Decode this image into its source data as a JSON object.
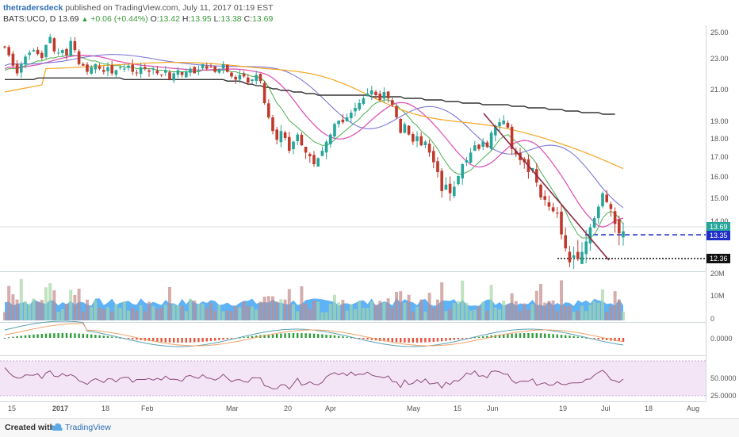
{
  "header": {
    "author": "thetradersdeck",
    "published": "published on TradingView.com, July 11, 2017 01:19 EST",
    "symbol": "BATS:UCO, D",
    "last": "13.69",
    "change_tri": "▲",
    "change": "+0.06 (+0.44%)",
    "o_label": "O:",
    "o_val": "13.42",
    "h_label": "H:",
    "h_val": "13.95",
    "l_label": "L:",
    "l_val": "13.38",
    "c_label": "C:",
    "c_val": "13.69"
  },
  "footer": {
    "created": "Created with",
    "brand": "TradingView"
  },
  "colors": {
    "up": "#26a69a",
    "down": "#c0392b",
    "ema_short": "#4caf50",
    "ema_mid": "#e056b8",
    "ema_mid2": "#7b78d6",
    "ema_long": "#f5a623",
    "sma200": "#333333",
    "trendline": "#8b2942",
    "dash_line": "#1f2ec9",
    "volume": "#42a5f5",
    "rsi_band": "#f3e5f5"
  },
  "price_axis": {
    "ticks": [
      "25.00",
      "23.00",
      "21.00",
      "19.00",
      "18.00",
      "17.00",
      "16.00",
      "15.00",
      "14.00"
    ],
    "last_label": "13.69",
    "level1": "13.35",
    "level2": "12.36"
  },
  "volume_axis": {
    "ticks": [
      "20M",
      "10M",
      "0"
    ]
  },
  "macd_axis": {
    "ticks": [
      "0.0000"
    ]
  },
  "rsi_axis": {
    "ticks": [
      "50.0000",
      "25.0000"
    ]
  },
  "x_axis": {
    "ticks": [
      "15",
      "2017",
      "18",
      "Feb",
      "Mar",
      "20",
      "Apr",
      "May",
      "15",
      "Jun",
      "19",
      "Jul",
      "18",
      "Aug"
    ]
  },
  "chart_data": {
    "type": "candlestick",
    "ylim": [
      12.2,
      25.2
    ],
    "closes": [
      23.8,
      23.2,
      22.5,
      22.0,
      22.6,
      23.1,
      23.4,
      23.6,
      23.3,
      23.0,
      24.0,
      24.6,
      23.5,
      23.4,
      23.6,
      23.2,
      24.3,
      23.6,
      22.6,
      22.5,
      22.1,
      22.4,
      22.6,
      22.3,
      22.1,
      22.4,
      22.0,
      22.2,
      22.4,
      22.3,
      22.5,
      22.1,
      22.0,
      22.4,
      22.3,
      22.1,
      22.3,
      22.0,
      21.9,
      22.2,
      21.6,
      22.0,
      22.2,
      21.9,
      22.1,
      22.3,
      22.0,
      22.2,
      22.6,
      22.3,
      22.4,
      22.1,
      22.3,
      22.6,
      22.1,
      21.8,
      21.6,
      21.9,
      21.8,
      21.4,
      21.6,
      21.9,
      21.5,
      20.1,
      19.2,
      18.4,
      17.9,
      18.4,
      18.0,
      17.3,
      17.8,
      18.2,
      17.6,
      17.2,
      17.0,
      16.6,
      16.9,
      17.3,
      17.8,
      18.2,
      18.8,
      19.0,
      18.9,
      19.2,
      19.5,
      19.8,
      20.1,
      20.4,
      20.7,
      20.9,
      20.6,
      20.3,
      20.8,
      20.4,
      20.0,
      19.2,
      18.3,
      18.8,
      18.2,
      17.8,
      18.1,
      17.6,
      17.8,
      17.2,
      16.7,
      16.2,
      15.3,
      15.6,
      15.2,
      15.5,
      16.0,
      16.6,
      16.8,
      17.2,
      17.6,
      17.4,
      17.8,
      17.5,
      18.3,
      18.7,
      18.9,
      19.0,
      18.6,
      17.4,
      17.1,
      16.8,
      16.7,
      16.2,
      16.4,
      15.7,
      15.0,
      14.9,
      14.6,
      14.4,
      14.3,
      13.6,
      13.2,
      12.8,
      13.0,
      12.9,
      13.1,
      13.4,
      13.8,
      14.1,
      14.6,
      15.2,
      14.8,
      14.5,
      13.9,
      13.63,
      13.69
    ],
    "ema_short": [
      22.2,
      22.3,
      22.3,
      22.3,
      22.4,
      22.5,
      22.6,
      22.7,
      22.8,
      22.8,
      22.9,
      23.0,
      23.0,
      23.1,
      23.1,
      23.2,
      23.2,
      23.2,
      23.1,
      23.0,
      22.9,
      22.8,
      22.8,
      22.7,
      22.6,
      22.6,
      22.5,
      22.5,
      22.5,
      22.4,
      22.4,
      22.4,
      22.3,
      22.3,
      22.3,
      22.3,
      22.3,
      22.2,
      22.2,
      22.2,
      22.1,
      22.1,
      22.1,
      22.1,
      22.1,
      22.1,
      22.1,
      22.1,
      22.2,
      22.2,
      22.2,
      22.2,
      22.2,
      22.2,
      22.2,
      22.1,
      22.1,
      22.0,
      22.0,
      21.9,
      21.8,
      21.8,
      21.7,
      21.5,
      21.1,
      20.6,
      20.1,
      19.8,
      19.4,
      19.0,
      18.8,
      18.6,
      18.4,
      18.2,
      18.0,
      17.8,
      17.7,
      17.6,
      17.6,
      17.7,
      17.9,
      18.1,
      18.3,
      18.5,
      18.7,
      18.9,
      19.1,
      19.4,
      19.6,
      19.9,
      20.1,
      20.2,
      20.3,
      20.3,
      20.2,
      20.0,
      19.7,
      19.5,
      19.2,
      18.9,
      18.7,
      18.4,
      18.2,
      18.0,
      17.7,
      17.4,
      17.0,
      16.7,
      16.4,
      16.2,
      16.1,
      16.1,
      16.2,
      16.3,
      16.5,
      16.7,
      16.9,
      17.1,
      17.3,
      17.6,
      17.9,
      18.1,
      18.2,
      18.0,
      17.8,
      17.6,
      17.4,
      17.1,
      16.9,
      16.6,
      16.2,
      15.9,
      15.6,
      15.3,
      15.0,
      14.7,
      14.4,
      14.0,
      13.8,
      13.6,
      13.5,
      13.5,
      13.5,
      13.6,
      13.8,
      14.1,
      14.3,
      14.4,
      14.3,
      14.1,
      13.9
    ],
    "sma200": [
      21.6,
      21.6,
      21.6,
      21.6,
      21.6,
      21.6,
      21.6,
      21.6,
      21.7,
      21.7,
      21.7,
      21.7,
      21.7,
      21.7,
      21.7,
      21.7,
      21.7,
      21.7,
      21.7,
      21.7,
      21.7,
      21.7,
      21.7,
      21.7,
      21.7,
      21.7,
      21.7,
      21.7,
      21.7,
      21.6,
      21.6,
      21.6,
      21.6,
      21.6,
      21.6,
      21.6,
      21.6,
      21.6,
      21.6,
      21.6,
      21.6,
      21.6,
      21.6,
      21.6,
      21.6,
      21.6,
      21.6,
      21.6,
      21.6,
      21.6,
      21.6,
      21.6,
      21.6,
      21.6,
      21.5,
      21.5,
      21.5,
      21.5,
      21.4,
      21.3,
      21.3,
      21.2,
      21.2,
      21.1,
      21.1,
      21.0,
      21.0,
      20.9,
      20.9,
      20.9,
      20.8,
      20.8,
      20.8,
      20.7,
      20.7,
      20.7,
      20.6,
      20.6,
      20.6,
      20.6,
      20.6,
      20.6,
      20.6,
      20.6,
      20.6,
      20.6,
      20.6,
      20.6,
      20.6,
      20.5,
      20.5,
      20.5,
      20.5,
      20.5,
      20.5,
      20.5,
      20.5,
      20.4,
      20.4,
      20.4,
      20.4,
      20.4,
      20.3,
      20.3,
      20.3,
      20.3,
      20.3,
      20.2,
      20.2,
      20.2,
      20.2,
      20.1,
      20.1,
      20.1,
      20.1,
      20.1,
      20.0,
      20.0,
      20.0,
      20.0,
      20.0,
      20.0,
      20.0,
      19.9,
      19.9,
      19.9,
      19.9,
      19.8,
      19.8,
      19.8,
      19.8,
      19.8,
      19.7,
      19.7,
      19.7,
      19.7,
      19.6,
      19.6,
      19.6,
      19.6,
      19.5,
      19.5,
      19.5,
      19.5,
      19.5,
      19.4,
      19.4,
      19.4,
      19.4
    ]
  }
}
